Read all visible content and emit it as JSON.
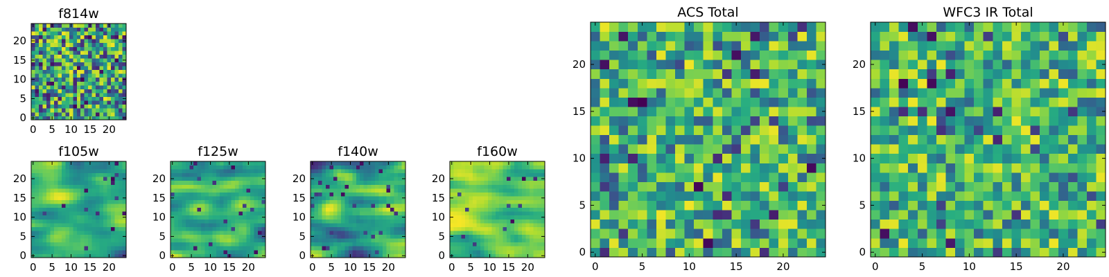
{
  "chart_data": [
    {
      "id": "f814w",
      "type": "heatmap",
      "title": "f814w",
      "grid": [
        25,
        25
      ],
      "colormap": "viridis",
      "xlim": [
        0,
        25
      ],
      "ylim": [
        0,
        25
      ],
      "xticks": [
        0,
        5,
        10,
        15,
        20
      ],
      "yticks": [
        0,
        5,
        10,
        15,
        20
      ],
      "seed": 17,
      "smooth": 0,
      "vmin": 0.05,
      "vmax": 0.98,
      "gamma": 0.75,
      "low_fraction": 0.07
    },
    {
      "id": "f105w",
      "type": "heatmap",
      "title": "f105w",
      "grid": [
        25,
        25
      ],
      "colormap": "viridis",
      "xlim": [
        0,
        25
      ],
      "ylim": [
        0,
        25
      ],
      "xticks": [
        0,
        5,
        10,
        15,
        20
      ],
      "yticks": [
        0,
        5,
        10,
        15,
        20
      ],
      "seed": 41,
      "smooth": 2,
      "vmin": 0.15,
      "vmax": 0.98,
      "gamma": 0.9,
      "low_fraction": 0.03
    },
    {
      "id": "f125w",
      "type": "heatmap",
      "title": "f125w",
      "grid": [
        25,
        25
      ],
      "colormap": "viridis",
      "xlim": [
        0,
        25
      ],
      "ylim": [
        0,
        25
      ],
      "xticks": [
        0,
        5,
        10,
        15,
        20
      ],
      "yticks": [
        0,
        5,
        10,
        15,
        20
      ],
      "seed": 73,
      "smooth": 2,
      "vmin": 0.2,
      "vmax": 0.98,
      "gamma": 0.85,
      "low_fraction": 0.03
    },
    {
      "id": "f140w",
      "type": "heatmap",
      "title": "f140w",
      "grid": [
        25,
        25
      ],
      "colormap": "viridis",
      "xlim": [
        0,
        25
      ],
      "ylim": [
        0,
        25
      ],
      "xticks": [
        0,
        5,
        10,
        15,
        20
      ],
      "yticks": [
        0,
        5,
        10,
        15,
        20
      ],
      "seed": 109,
      "smooth": 2,
      "vmin": 0.1,
      "vmax": 0.98,
      "gamma": 1.0,
      "low_fraction": 0.04
    },
    {
      "id": "f160w",
      "type": "heatmap",
      "title": "f160w",
      "grid": [
        25,
        25
      ],
      "colormap": "viridis",
      "xlim": [
        0,
        25
      ],
      "ylim": [
        0,
        25
      ],
      "xticks": [
        0,
        5,
        10,
        15,
        20
      ],
      "yticks": [
        0,
        5,
        10,
        15,
        20
      ],
      "seed": 151,
      "smooth": 2,
      "vmin": 0.45,
      "vmax": 0.99,
      "gamma": 0.7,
      "low_fraction": 0.02
    },
    {
      "id": "acs-total",
      "type": "heatmap",
      "title": "ACS Total",
      "grid": [
        25,
        25
      ],
      "colormap": "viridis",
      "xlim": [
        0,
        25
      ],
      "ylim": [
        0,
        25
      ],
      "xticks": [
        0,
        5,
        10,
        15,
        20
      ],
      "yticks": [
        0,
        5,
        10,
        15,
        20
      ],
      "seed": 233,
      "smooth": 0,
      "vmin": 0.25,
      "vmax": 0.98,
      "gamma": 0.8,
      "low_fraction": 0.06
    },
    {
      "id": "wfc3-ir-total",
      "type": "heatmap",
      "title": "WFC3 IR Total",
      "grid": [
        25,
        25
      ],
      "colormap": "viridis",
      "xlim": [
        0,
        25
      ],
      "ylim": [
        0,
        25
      ],
      "xticks": [
        0,
        5,
        10,
        15,
        20
      ],
      "yticks": [
        0,
        5,
        10,
        15,
        20
      ],
      "seed": 311,
      "smooth": 0,
      "vmin": 0.3,
      "vmax": 0.98,
      "gamma": 0.8,
      "low_fraction": 0.05
    }
  ]
}
